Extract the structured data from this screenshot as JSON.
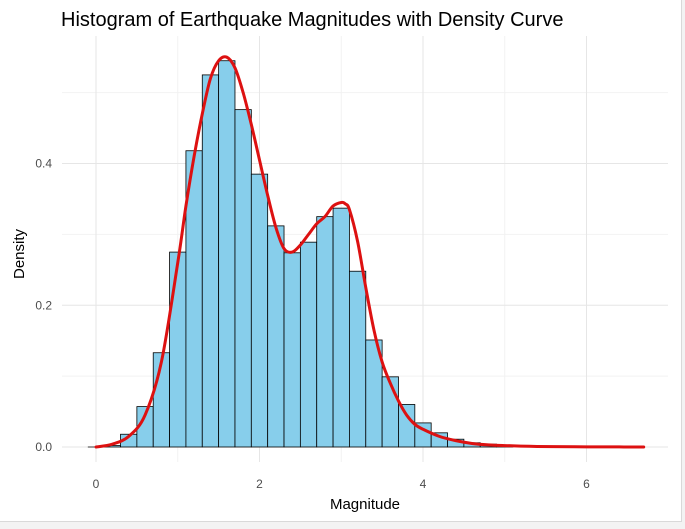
{
  "chart_data": {
    "type": "bar",
    "title": "Histogram of Earthquake Magnitudes with Density Curve",
    "xlabel": "Magnitude",
    "ylabel": "Density",
    "xlim": [
      -0.25,
      7.0
    ],
    "ylim": [
      0,
      0.55
    ],
    "xticks": [
      0,
      2,
      4,
      6
    ],
    "yticks": [
      0.0,
      0.2,
      0.4
    ],
    "ytick_labels": [
      "0.0",
      "0.2",
      "0.4"
    ],
    "grid": true,
    "legend": "none",
    "bin_width": 0.2,
    "bins": [
      {
        "x0": 0.1,
        "value": 0.002
      },
      {
        "x0": 0.3,
        "value": 0.018
      },
      {
        "x0": 0.5,
        "value": 0.057
      },
      {
        "x0": 0.7,
        "value": 0.133
      },
      {
        "x0": 0.9,
        "value": 0.275
      },
      {
        "x0": 1.1,
        "value": 0.418
      },
      {
        "x0": 1.3,
        "value": 0.525
      },
      {
        "x0": 1.5,
        "value": 0.545
      },
      {
        "x0": 1.7,
        "value": 0.476
      },
      {
        "x0": 1.9,
        "value": 0.385
      },
      {
        "x0": 2.1,
        "value": 0.312
      },
      {
        "x0": 2.3,
        "value": 0.274
      },
      {
        "x0": 2.5,
        "value": 0.289
      },
      {
        "x0": 2.7,
        "value": 0.325
      },
      {
        "x0": 2.9,
        "value": 0.337
      },
      {
        "x0": 3.1,
        "value": 0.248
      },
      {
        "x0": 3.3,
        "value": 0.151
      },
      {
        "x0": 3.5,
        "value": 0.099
      },
      {
        "x0": 3.7,
        "value": 0.06
      },
      {
        "x0": 3.9,
        "value": 0.034
      },
      {
        "x0": 4.1,
        "value": 0.02
      },
      {
        "x0": 4.3,
        "value": 0.011
      },
      {
        "x0": 4.5,
        "value": 0.006
      },
      {
        "x0": 4.7,
        "value": 0.004
      },
      {
        "x0": 4.9,
        "value": 0.002
      }
    ],
    "density_curve": {
      "x": [
        0.0,
        0.2,
        0.4,
        0.6,
        0.8,
        1.0,
        1.1,
        1.2,
        1.3,
        1.4,
        1.5,
        1.6,
        1.7,
        1.8,
        1.9,
        2.0,
        2.1,
        2.2,
        2.3,
        2.4,
        2.5,
        2.6,
        2.7,
        2.8,
        2.9,
        3.0,
        3.05,
        3.1,
        3.2,
        3.3,
        3.4,
        3.5,
        3.6,
        3.7,
        3.8,
        3.9,
        4.0,
        4.2,
        4.4,
        4.6,
        4.8,
        5.0,
        5.3,
        5.6,
        6.0,
        6.4,
        6.7
      ],
      "y": [
        0.0,
        0.004,
        0.015,
        0.045,
        0.12,
        0.26,
        0.34,
        0.41,
        0.47,
        0.52,
        0.545,
        0.55,
        0.535,
        0.5,
        0.455,
        0.405,
        0.355,
        0.31,
        0.28,
        0.275,
        0.285,
        0.3,
        0.315,
        0.325,
        0.34,
        0.345,
        0.343,
        0.335,
        0.29,
        0.225,
        0.165,
        0.12,
        0.09,
        0.065,
        0.045,
        0.032,
        0.025,
        0.015,
        0.009,
        0.005,
        0.003,
        0.002,
        0.001,
        0.0005,
        0.0002,
        0.0001,
        0.0
      ]
    }
  },
  "colors": {
    "bar_fill": "#87CEEB",
    "bar_stroke": "#000000",
    "curve": "#DD1111",
    "grid_major": "#e6e6e6",
    "grid_minor": "#f2f2f2"
  }
}
